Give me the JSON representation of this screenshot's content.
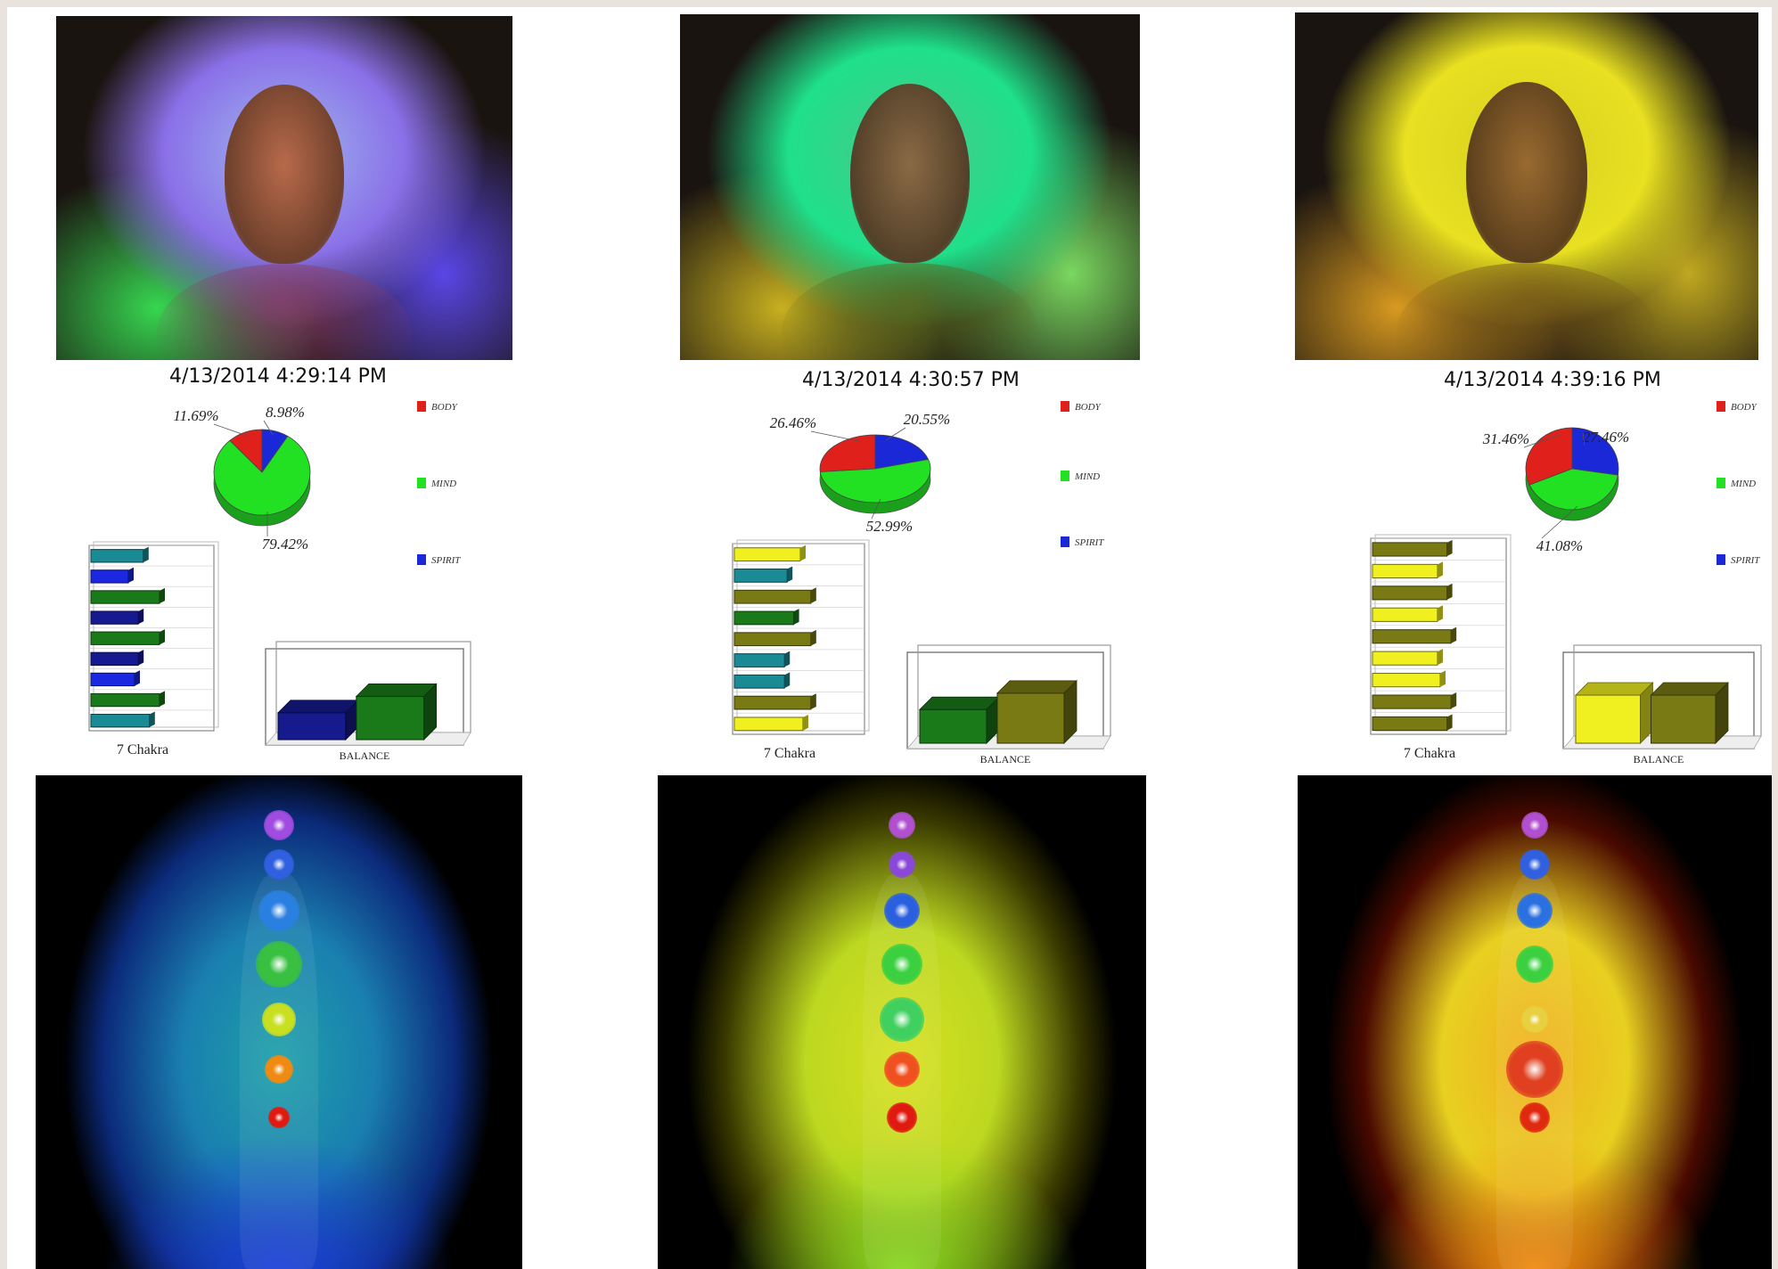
{
  "readings": [
    {
      "timestamp": "4/13/2014 4:29:14 PM",
      "aura": {
        "outer": "#8a70e8",
        "mid": "#9fb8ee",
        "lower": "#37d650",
        "side": "#5a46e6",
        "face": "#b86a4a",
        "cloth": "#8a3d6a"
      },
      "body_aura": {
        "core": "#1da0a8",
        "mid": "#1a7fb0",
        "edge": "#0b2a7a",
        "lower": "#1b3fd9"
      },
      "chakra_colors": [
        "#a04ce0",
        "#3060e0",
        "#2a80e0",
        "#39c040",
        "#c8e020",
        "#f08a10",
        "#e01a10"
      ],
      "chakra_sizes": [
        1.0,
        1.0,
        1.35,
        1.55,
        1.1,
        0.95,
        0.7
      ],
      "chart_data": [
        {
          "type": "pie",
          "categories": [
            "BODY",
            "MIND",
            "SPIRIT"
          ],
          "values": [
            11.69,
            79.42,
            8.98
          ],
          "labels": [
            "11.69%",
            "79.42%",
            "8.98%"
          ],
          "colors": [
            "#e0201a",
            "#22e022",
            "#1a28d8"
          ],
          "legend": [
            "BODY",
            "MIND",
            "SPIRIT"
          ],
          "legend_placement": "right"
        },
        {
          "type": "bar",
          "orientation": "horizontal",
          "xlabel": "7 Chakra",
          "values": [
            0.42,
            0.3,
            0.55,
            0.38,
            0.55,
            0.38,
            0.35,
            0.55,
            0.47
          ],
          "colors": [
            "#1a8a94",
            "#1a28e0",
            "#1a7a1a",
            "#151a90",
            "#1a7a1a",
            "#151a90",
            "#1a28e0",
            "#1a7a1a",
            "#1a8a94"
          ]
        },
        {
          "type": "bar",
          "orientation": "vertical",
          "xlabel": "BALANCE",
          "values": [
            0.28,
            0.45
          ],
          "colors": [
            "#151a8c",
            "#1a7a1a"
          ]
        }
      ]
    },
    {
      "timestamp": "4/13/2014 4:30:57 PM",
      "aura": {
        "outer": "#1fe08a",
        "mid": "#48c88a",
        "lower": "#c8b020",
        "side": "#7ad860",
        "face": "#8a6a45",
        "cloth": "#5a6a20"
      },
      "body_aura": {
        "core": "#d8e020",
        "mid": "#bcd820",
        "edge": "#3a3a00",
        "lower": "#88d820"
      },
      "chakra_colors": [
        "#b050d0",
        "#8a48d8",
        "#2a60e0",
        "#3ad040",
        "#40d060",
        "#f05020",
        "#e01a10"
      ],
      "chakra_sizes": [
        0.9,
        0.9,
        1.2,
        1.35,
        1.45,
        1.2,
        1.0
      ],
      "chart_data": [
        {
          "type": "pie",
          "categories": [
            "BODY",
            "MIND",
            "SPIRIT"
          ],
          "values": [
            26.46,
            52.99,
            20.55
          ],
          "labels": [
            "26.46%",
            "52.99%",
            "20.55%"
          ],
          "colors": [
            "#e0201a",
            "#22e022",
            "#1a28d8"
          ],
          "legend": [
            "BODY",
            "MIND",
            "SPIRIT"
          ],
          "legend_placement": "right"
        },
        {
          "type": "bar",
          "orientation": "horizontal",
          "xlabel": "7 Chakra",
          "values": [
            0.5,
            0.4,
            0.58,
            0.45,
            0.58,
            0.38,
            0.38,
            0.58,
            0.52
          ],
          "colors": [
            "#f0f020",
            "#1a8a94",
            "#7a7a15",
            "#1a7a1a",
            "#7a7a15",
            "#1a8a94",
            "#1a8a94",
            "#7a7a15",
            "#f0f020"
          ]
        },
        {
          "type": "bar",
          "orientation": "vertical",
          "xlabel": "BALANCE",
          "values": [
            0.35,
            0.52
          ],
          "colors": [
            "#1a7a1a",
            "#7a7a15"
          ]
        }
      ]
    },
    {
      "timestamp": "4/13/2014 4:39:16 PM",
      "aura": {
        "outer": "#e8e020",
        "mid": "#d8d020",
        "lower": "#d89a20",
        "side": "#c0a820",
        "face": "#9a6a30",
        "cloth": "#7a5a18"
      },
      "body_aura": {
        "core": "#f0b020",
        "mid": "#e8d020",
        "edge": "#4a0a00",
        "lower": "#f08a10"
      },
      "chakra_colors": [
        "#b050d0",
        "#3060e0",
        "#2a70e0",
        "#3ad040",
        "#e8d040",
        "#e04020",
        "#e02a10"
      ],
      "chakra_sizes": [
        0.9,
        1.0,
        1.2,
        1.25,
        0.9,
        1.9,
        1.0
      ],
      "chart_data": [
        {
          "type": "pie",
          "categories": [
            "BODY",
            "MIND",
            "SPIRIT"
          ],
          "values": [
            31.46,
            41.08,
            27.46
          ],
          "labels": [
            "31.46%",
            "41.08%",
            "27.46%"
          ],
          "colors": [
            "#e0201a",
            "#22e022",
            "#1a28d8"
          ],
          "legend": [
            "BODY",
            "MIND",
            "SPIRIT"
          ],
          "legend_placement": "right"
        },
        {
          "type": "bar",
          "orientation": "horizontal",
          "xlabel": "7 Chakra",
          "values": [
            0.55,
            0.48,
            0.55,
            0.48,
            0.58,
            0.48,
            0.5,
            0.58,
            0.55
          ],
          "colors": [
            "#7a7a15",
            "#f0f020",
            "#7a7a15",
            "#f0f020",
            "#7a7a15",
            "#f0f020",
            "#f0f020",
            "#7a7a15",
            "#7a7a15"
          ]
        },
        {
          "type": "bar",
          "orientation": "vertical",
          "xlabel": "BALANCE",
          "values": [
            0.5,
            0.5
          ],
          "colors": [
            "#f0f020",
            "#7a7a15"
          ]
        }
      ]
    }
  ]
}
